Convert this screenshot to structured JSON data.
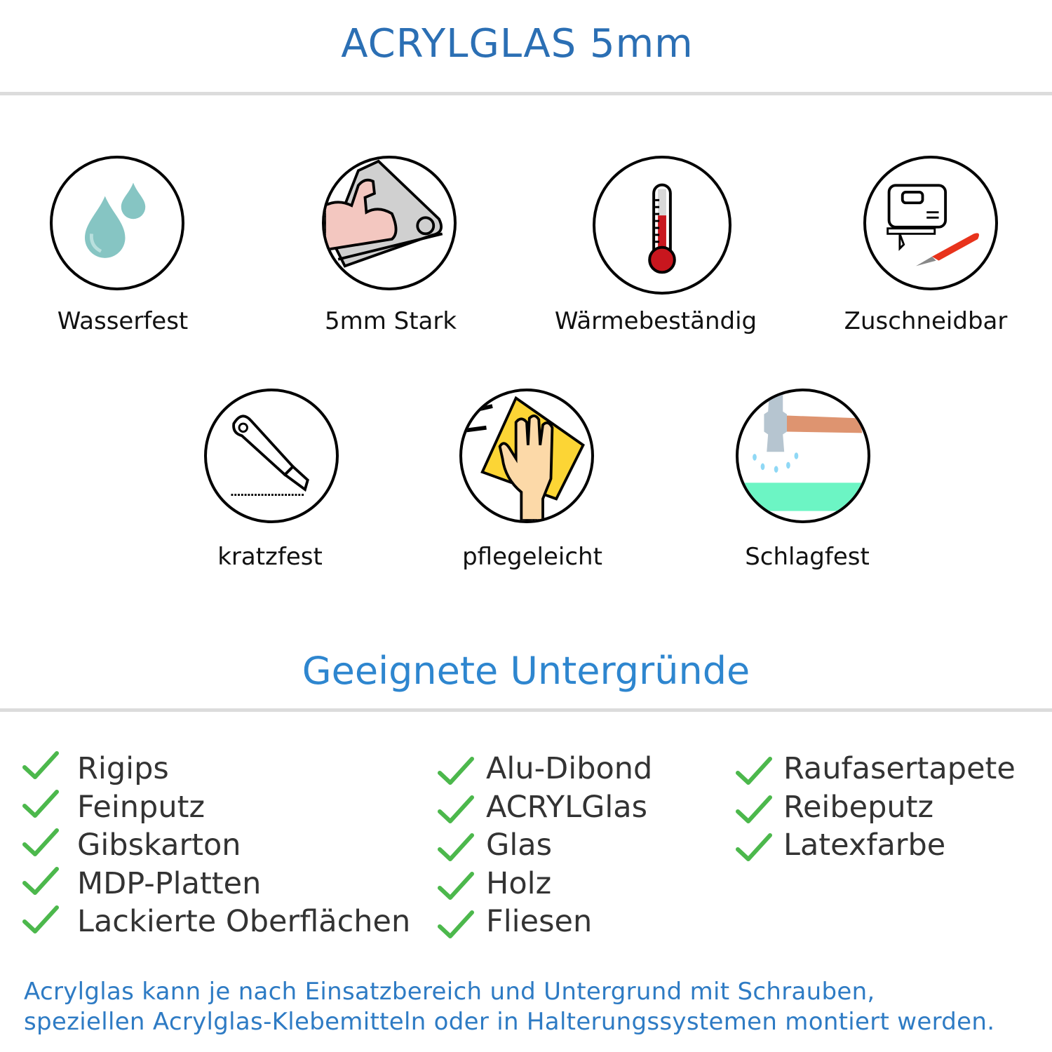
{
  "header": {
    "title": "ACRYLGLAS 5mm"
  },
  "features": [
    {
      "label": "Wasserfest",
      "icon": "water-drops-icon"
    },
    {
      "label": "5mm Stark",
      "icon": "muscle-arm-icon"
    },
    {
      "label": "Wärmebeständig",
      "icon": "thermometer-icon"
    },
    {
      "label": "Zuschneidbar",
      "icon": "jigsaw-knife-icon"
    },
    {
      "label": "kratzfest",
      "icon": "cutter-knife-icon"
    },
    {
      "label": "pflegeleicht",
      "icon": "hand-cloth-icon"
    },
    {
      "label": "Schlagfest",
      "icon": "hammer-icon"
    }
  ],
  "surfaces": {
    "title": "Geeignete Untergründe",
    "columns": [
      [
        "Rigips",
        "Feinputz",
        "Gibskarton",
        "MDP-Platten",
        "Lackierte Oberflächen"
      ],
      [
        "Alu-Dibond",
        "ACRYLGlas",
        "Glas",
        "Holz",
        "Fliesen"
      ],
      [
        "Raufasertapete",
        "Reibeputz",
        "Latexfarbe"
      ]
    ]
  },
  "footer": {
    "line1": "Acrylglas kann je nach Einsatzbereich und Untergrund mit Schrauben,",
    "line2": "speziellen Acrylglas-Klebemitteln oder in Halterungssystemen montiert werden."
  },
  "colors": {
    "title": "#2b6fb4",
    "subtitle": "#2e86cf",
    "check": "#4cb84c",
    "footer": "#2e7bc4"
  }
}
